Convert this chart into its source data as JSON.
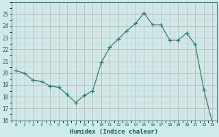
{
  "x": [
    0,
    1,
    2,
    3,
    4,
    5,
    6,
    7,
    8,
    9,
    10,
    11,
    12,
    13,
    14,
    15,
    16,
    17,
    18,
    19,
    20,
    21,
    22,
    23
  ],
  "y": [
    20.2,
    20.0,
    19.4,
    19.3,
    18.9,
    18.8,
    18.2,
    17.5,
    18.1,
    18.5,
    20.9,
    22.2,
    22.9,
    23.6,
    24.2,
    25.1,
    24.1,
    24.1,
    22.8,
    22.8,
    23.4,
    22.4,
    18.6,
    15.8
  ],
  "line_color": "#2e7d6e",
  "marker": "+",
  "marker_size": 4,
  "bg_color": "#ceeaea",
  "grid_major_color": "#c8a8a8",
  "grid_minor_color": "#dcc8c8",
  "xlabel": "Humidex (Indice chaleur)",
  "ylim": [
    16,
    26
  ],
  "xlim": [
    -0.5,
    23.5
  ],
  "yticks": [
    16,
    17,
    18,
    19,
    20,
    21,
    22,
    23,
    24,
    25
  ],
  "xticks": [
    0,
    1,
    2,
    3,
    4,
    5,
    6,
    7,
    8,
    9,
    10,
    11,
    12,
    13,
    14,
    15,
    16,
    17,
    18,
    19,
    20,
    21,
    22,
    23
  ],
  "label_color": "#1a5c50",
  "tick_color": "#1a5c50",
  "spine_color": "#1a5c50"
}
